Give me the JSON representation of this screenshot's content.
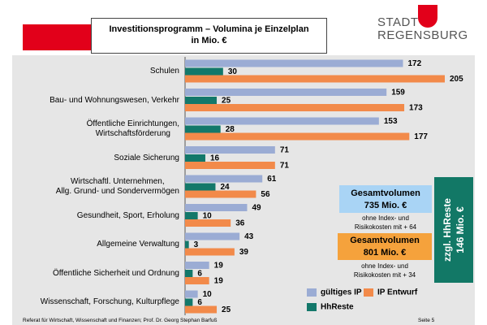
{
  "header": {
    "title": "Investitionsprogramm – Volumina je Einzelplan\nin Mio. €",
    "logo": "STADT\nREGENSBURG"
  },
  "chart_data": {
    "type": "bar",
    "orientation": "horizontal",
    "categories": [
      "Schulen",
      "Bau- und Wohnungswesen, Verkehr",
      "Öffentliche Einrichtungen,\nWirtschaftsförderung",
      "Soziale Sicherung",
      "Wirtschaftl. Unternehmen,\nAllg. Grund- und Sondervermögen",
      "Gesundheit, Sport, Erholung",
      "Allgemeine Verwaltung",
      "Öffentliche Sicherheit und Ordnung",
      "Wissenschaft, Forschung, Kulturpflege"
    ],
    "series": [
      {
        "name": "gültiges IP",
        "color": "#9bacd4",
        "values": [
          172,
          159,
          153,
          71,
          61,
          49,
          43,
          19,
          10
        ]
      },
      {
        "name": "HhReste",
        "color": "#13786a",
        "values": [
          30,
          25,
          28,
          16,
          24,
          10,
          3,
          6,
          6
        ]
      },
      {
        "name": "IP Entwurf",
        "color": "#f28a4a",
        "values": [
          205,
          173,
          177,
          71,
          56,
          36,
          39,
          19,
          25
        ]
      }
    ],
    "legend_order": [
      0,
      2,
      1
    ]
  },
  "boxes": [
    {
      "title": "Gesamtvolumen\n735 Mio. €",
      "note": "ohne Index- und\nRisikokosten mit + 64",
      "color": "#a9d4f5"
    },
    {
      "title": "Gesamtvolumen\n801 Mio. €",
      "note": "ohne Index- und\nRisikokosten mit + 34",
      "color": "#f5a23c"
    }
  ],
  "side_box": {
    "text": "zzgl. HhReste\n146 Mio. €",
    "color": "#127866"
  },
  "footer": {
    "text": "Referat für Wirtschaft, Wissenschaft und Finanzen; Prof. Dr. Georg Stephan Barfuß",
    "page": "Seite 5"
  }
}
